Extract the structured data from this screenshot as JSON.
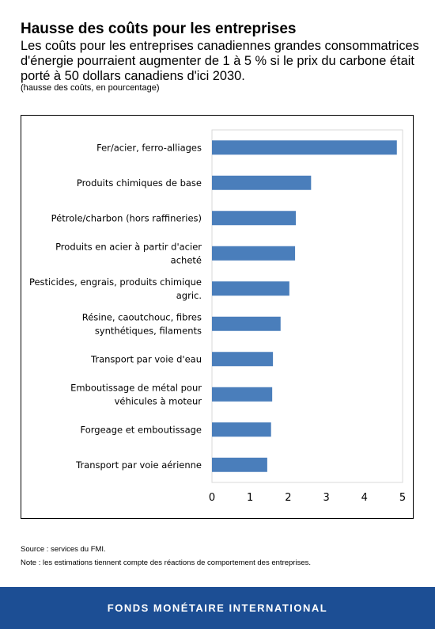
{
  "header": {
    "title": "Hausse des coûts pour les entreprises",
    "subtitle": "Les coûts pour les entreprises canadiennes grandes consommatrices d'énergie pourraient augmenter de 1 à 5 % si le prix du carbone était porté à 50 dollars canadiens d'ici 2030.",
    "unit_note": "(hausse des coûts, en pourcentage)"
  },
  "chart_data": {
    "type": "bar",
    "orientation": "horizontal",
    "categories": [
      [
        "Fer/acier, ferro-alliages"
      ],
      [
        "Produits chimiques de base"
      ],
      [
        "Pétrole/charbon (hors raffineries)"
      ],
      [
        "Produits en acier à partir d'acier",
        "acheté"
      ],
      [
        "Pesticides, engrais, produits chimique",
        "agric."
      ],
      [
        "Résine, caoutchouc, fibres",
        "synthétiques, filaments"
      ],
      [
        "Transport par voie d'eau"
      ],
      [
        "Emboutissage de métal pour",
        "véhicules à moteur"
      ],
      [
        "Forgeage et emboutissage"
      ],
      [
        "Transport par voie aérienne"
      ]
    ],
    "values": [
      4.85,
      2.6,
      2.2,
      2.18,
      2.03,
      1.8,
      1.6,
      1.58,
      1.55,
      1.45
    ],
    "xlim": [
      0,
      5
    ],
    "xticks": [
      "0",
      "1",
      "2",
      "3",
      "4",
      "5"
    ],
    "grid": false,
    "bar_color": "#4a7ebb"
  },
  "footer": {
    "source": "Source : services du FMI.",
    "note": "Note : les estimations tiennent compte des réactions de comportement des entreprises.",
    "organization": "FONDS MONÉTAIRE INTERNATIONAL"
  }
}
